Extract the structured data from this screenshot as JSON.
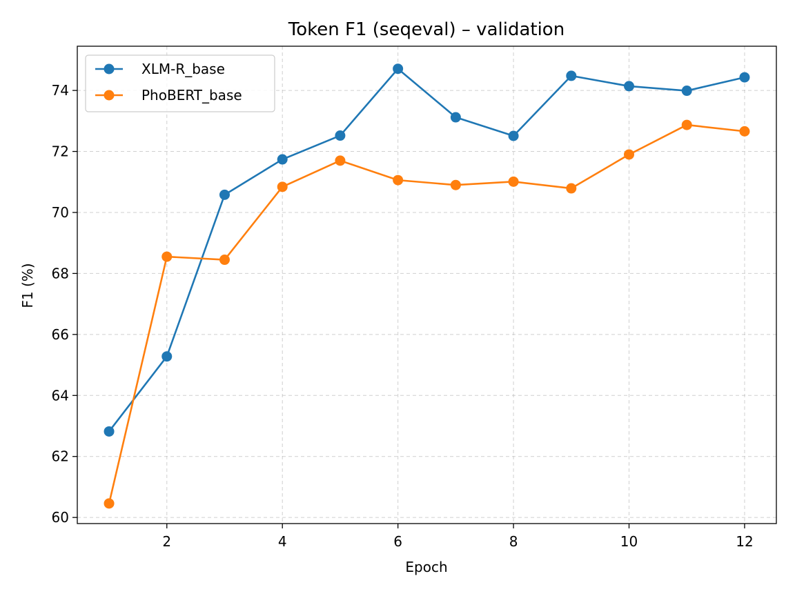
{
  "chart_data": {
    "type": "line",
    "title": "Token F1 (seqeval) – validation",
    "xlabel": "Epoch",
    "ylabel": "F1 (%)",
    "x": [
      1,
      2,
      3,
      4,
      5,
      6,
      7,
      8,
      9,
      10,
      11,
      12
    ],
    "xlim": [
      0.45,
      12.55
    ],
    "ylim": [
      59.8,
      75.45
    ],
    "xticks": [
      2,
      4,
      6,
      8,
      10,
      12
    ],
    "yticks": [
      60,
      62,
      64,
      66,
      68,
      70,
      72,
      74
    ],
    "grid": true,
    "legend_position": "top-left",
    "series": [
      {
        "name": "XLM-R_base",
        "color": "#1f77b4",
        "values": [
          62.82,
          65.28,
          70.58,
          71.74,
          72.52,
          74.71,
          73.12,
          72.51,
          74.48,
          74.14,
          73.99,
          74.43
        ]
      },
      {
        "name": "PhoBERT_base",
        "color": "#ff7f0e",
        "values": [
          60.46,
          68.55,
          68.45,
          70.84,
          71.7,
          71.06,
          70.9,
          71.01,
          70.79,
          71.9,
          72.87,
          72.66
        ]
      }
    ]
  }
}
